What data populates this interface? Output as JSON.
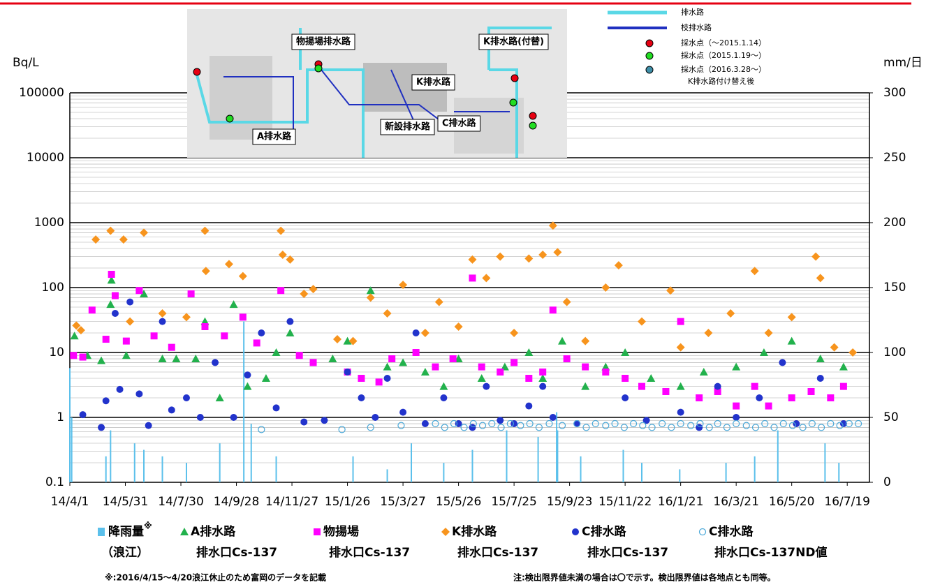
{
  "chart_data": {
    "type": "scatter",
    "y_label": "Bq/L",
    "y2_label": "mm/日",
    "log_y": true,
    "grid": true,
    "minor_grid": true,
    "xlim": [
      "14/4/1",
      "16/8/12"
    ],
    "xticks": [
      "14/4/1",
      "14/5/31",
      "14/7/30",
      "14/9/28",
      "14/11/27",
      "15/1/26",
      "15/3/27",
      "15/5/26",
      "15/7/25",
      "15/9/23",
      "15/11/22",
      "16/1/21",
      "16/3/21",
      "16/5/20",
      "16/7/19"
    ],
    "ylim": [
      0.1,
      100000
    ],
    "yticks": [
      0.1,
      1,
      10,
      100,
      1000,
      10000,
      100000
    ],
    "y2lim": [
      0,
      300
    ],
    "y2ticks": [
      0,
      50,
      100,
      150,
      200,
      250,
      300
    ],
    "series": [
      {
        "name": [
          "降雨量",
          "（浪江）"
        ],
        "name_mark": "※",
        "type": "bar",
        "axis": "y2",
        "color": "#5bc0eb",
        "x": [
          "14/4/1",
          "14/4/3",
          "14/5/10",
          "14/5/15",
          "14/6/10",
          "14/6/20",
          "14/7/10",
          "14/8/5",
          "14/9/10",
          "14/10/6",
          "14/10/14",
          "14/11/10",
          "15/2/1",
          "15/3/10",
          "15/4/5",
          "15/5/10",
          "15/6/10",
          "15/7/17",
          "15/8/20",
          "15/9/9",
          "15/9/10",
          "15/10/5",
          "15/11/20",
          "15/12/10",
          "16/1/20",
          "16/3/10",
          "16/4/10",
          "16/5/5",
          "16/6/25",
          "16/7/10"
        ],
        "values": [
          88,
          50,
          20,
          40,
          30,
          25,
          20,
          15,
          30,
          124,
          45,
          20,
          20,
          10,
          30,
          15,
          25,
          40,
          35,
          54,
          40,
          20,
          25,
          15,
          10,
          15,
          20,
          40,
          30,
          15
        ]
      },
      {
        "name": [
          "A排水路",
          "排水口Cs-137"
        ],
        "marker": "triangle",
        "color": "#22b14c",
        "x": [
          "14/4/6",
          "14/4/20",
          "14/5/5",
          "14/5/15",
          "14/5/16",
          "14/6/1",
          "14/6/20",
          "14/7/10",
          "14/7/25",
          "14/8/15",
          "14/8/25",
          "14/9/10",
          "14/9/25",
          "14/10/10",
          "14/10/30",
          "14/11/10",
          "14/11/25",
          "15/1/10",
          "15/1/26",
          "15/2/20",
          "15/3/10",
          "15/3/27",
          "15/4/20",
          "15/5/10",
          "15/5/26",
          "15/6/20",
          "15/7/15",
          "15/8/10",
          "15/8/25",
          "15/9/15",
          "15/10/10",
          "15/11/1",
          "15/11/22",
          "15/12/20",
          "16/1/21",
          "16/2/15",
          "16/3/21",
          "16/4/20",
          "16/5/20",
          "16/6/20",
          "16/7/15"
        ],
        "values": [
          18,
          9,
          7.5,
          55,
          130,
          9,
          80,
          8,
          8,
          8,
          30,
          2,
          55,
          3,
          4,
          10,
          20,
          8,
          15,
          90,
          6,
          7,
          5,
          3,
          8,
          4,
          6,
          10,
          4,
          15,
          3,
          6,
          10,
          4,
          3,
          5,
          6,
          10,
          15,
          8,
          6
        ]
      },
      {
        "name": [
          "物揚場",
          "排水口Cs-137"
        ],
        "marker": "square",
        "color": "#ff00ff",
        "x": [
          "14/4/5",
          "14/4/15",
          "14/4/25",
          "14/5/10",
          "14/5/16",
          "14/5/20",
          "14/6/1",
          "14/6/15",
          "14/7/1",
          "14/7/20",
          "14/8/10",
          "14/8/25",
          "14/9/15",
          "14/10/5",
          "14/10/20",
          "14/11/15",
          "14/12/5",
          "14/12/20",
          "15/1/26",
          "15/2/10",
          "15/3/1",
          "15/3/15",
          "15/4/10",
          "15/5/1",
          "15/5/20",
          "15/6/10",
          "15/6/20",
          "15/7/10",
          "15/7/25",
          "15/8/10",
          "15/8/25",
          "15/9/5",
          "15/9/20",
          "15/10/10",
          "15/11/1",
          "15/11/22",
          "15/12/10",
          "16/1/5",
          "16/1/21",
          "16/2/10",
          "16/3/1",
          "16/3/21",
          "16/4/10",
          "16/4/25",
          "16/5/20",
          "16/6/10",
          "16/7/1",
          "16/7/15"
        ],
        "values": [
          9,
          8.5,
          45,
          16,
          160,
          75,
          15,
          90,
          18,
          12,
          80,
          25,
          18,
          35,
          14,
          90,
          9,
          7,
          5,
          4,
          3.5,
          8,
          10,
          6,
          8,
          140,
          6,
          5,
          7,
          4,
          5,
          45,
          8,
          6,
          5,
          4,
          3,
          2.5,
          30,
          2,
          2.5,
          1.5,
          3,
          1.5,
          2,
          2.5,
          2,
          3
        ]
      },
      {
        "name": [
          "K排水路",
          "排水口Cs-137"
        ],
        "marker": "diamond",
        "color": "#f7941d",
        "x": [
          "14/4/8",
          "14/4/13",
          "14/4/29",
          "14/5/15",
          "14/5/29",
          "14/6/5",
          "14/6/20",
          "14/7/10",
          "14/8/5",
          "14/8/25",
          "14/8/26",
          "14/9/20",
          "14/10/5",
          "14/11/15",
          "14/11/17",
          "14/11/25",
          "14/12/10",
          "14/12/20",
          "15/1/15",
          "15/2/1",
          "15/2/20",
          "15/3/10",
          "15/3/27",
          "15/4/20",
          "15/5/5",
          "15/5/26",
          "15/6/10",
          "15/6/25",
          "15/7/10",
          "15/7/25",
          "15/8/10",
          "15/8/25",
          "15/9/5",
          "15/9/10",
          "15/9/20",
          "15/10/10",
          "15/11/1",
          "15/11/15",
          "15/12/10",
          "16/1/10",
          "16/1/21",
          "16/2/20",
          "16/3/15",
          "16/4/10",
          "16/4/25",
          "16/5/20",
          "16/6/15",
          "16/6/20",
          "16/7/5",
          "16/7/25"
        ],
        "values": [
          26,
          22,
          550,
          750,
          550,
          30,
          700,
          40,
          35,
          750,
          180,
          230,
          150,
          750,
          320,
          270,
          80,
          95,
          16,
          15,
          70,
          40,
          110,
          20,
          60,
          25,
          270,
          140,
          300,
          20,
          280,
          320,
          900,
          350,
          60,
          15,
          100,
          220,
          30,
          90,
          12,
          20,
          40,
          180,
          20,
          35,
          300,
          140,
          12,
          10
        ]
      },
      {
        "name": [
          "C排水路",
          "排水口Cs-137"
        ],
        "marker": "circle",
        "color": "#2233cc",
        "x": [
          "14/4/15",
          "14/5/5",
          "14/5/10",
          "14/5/20",
          "14/5/25",
          "14/6/5",
          "14/6/15",
          "14/6/25",
          "14/7/10",
          "14/7/20",
          "14/8/5",
          "14/8/20",
          "14/9/5",
          "14/9/25",
          "14/10/10",
          "14/10/25",
          "14/11/10",
          "14/11/25",
          "14/12/10",
          "15/1/1",
          "15/1/26",
          "15/2/10",
          "15/2/25",
          "15/3/10",
          "15/3/27",
          "15/4/10",
          "15/4/20",
          "15/5/10",
          "15/5/26",
          "15/6/10",
          "15/6/25",
          "15/7/10",
          "15/7/25",
          "15/8/10",
          "15/8/25",
          "15/9/5",
          "15/10/1",
          "15/11/22",
          "15/12/15",
          "16/1/21",
          "16/2/10",
          "16/3/1",
          "16/3/21",
          "16/4/15",
          "16/5/10",
          "16/5/25",
          "16/6/20",
          "16/7/15"
        ],
        "values": [
          1.1,
          0.7,
          1.8,
          40,
          2.7,
          60,
          2.3,
          0.75,
          30,
          1.3,
          2,
          1,
          7,
          1,
          4.5,
          20,
          1.4,
          30,
          0.85,
          0.9,
          5,
          2,
          1,
          4,
          1.2,
          20,
          0.8,
          2,
          0.8,
          0.7,
          3,
          0.9,
          0.8,
          1.5,
          3,
          1,
          0.8,
          2,
          0.9,
          1.2,
          0.7,
          3,
          1,
          2,
          7,
          0.8,
          4,
          0.8
        ]
      },
      {
        "name": [
          "C排水路",
          "排水口Cs-137ND値"
        ],
        "marker": "open-circle",
        "color": "#4aa8d8",
        "x": [
          "14/10/25",
          "15/1/20",
          "15/2/20",
          "15/3/25",
          "15/5/1",
          "15/5/11",
          "15/5/21",
          "15/6/1",
          "15/6/11",
          "15/6/21",
          "15/7/1",
          "15/7/11",
          "15/7/21",
          "15/8/1",
          "15/8/11",
          "15/8/21",
          "15/9/1",
          "15/9/15",
          "15/10/1",
          "15/10/11",
          "15/10/21",
          "15/11/1",
          "15/11/11",
          "15/11/21",
          "15/12/1",
          "15/12/11",
          "15/12/21",
          "16/1/1",
          "16/1/11",
          "16/1/21",
          "16/2/1",
          "16/2/11",
          "16/2/21",
          "16/3/1",
          "16/3/11",
          "16/3/21",
          "16/4/1",
          "16/4/11",
          "16/4/21",
          "16/5/1",
          "16/5/11",
          "16/5/21",
          "16/6/1",
          "16/6/11",
          "16/6/21",
          "16/7/1",
          "16/7/11",
          "16/7/21",
          "16/7/31"
        ],
        "values": [
          0.65,
          0.65,
          0.7,
          0.75,
          0.8,
          0.7,
          0.8,
          0.7,
          0.8,
          0.75,
          0.8,
          0.7,
          0.8,
          0.75,
          0.8,
          0.7,
          0.8,
          0.75,
          0.8,
          0.7,
          0.8,
          0.75,
          0.8,
          0.7,
          0.8,
          0.75,
          0.7,
          0.8,
          0.7,
          0.8,
          0.75,
          0.8,
          0.7,
          0.8,
          0.7,
          0.8,
          0.75,
          0.7,
          0.8,
          0.7,
          0.8,
          0.75,
          0.7,
          0.8,
          0.7,
          0.8,
          0.75,
          0.8,
          0.8
        ]
      }
    ],
    "notes": [
      "※:2016/4/15～4/20浪江休止のため富岡のデータを記載",
      "注:検出限界値未満の場合は〇で示す。検出限界値は各地点とも同等。"
    ]
  },
  "map": {
    "labels": [
      "物揚場排水路",
      "K排水路(付替)",
      "K排水路",
      "A排水路",
      "新設排水路",
      "C排水路"
    ],
    "legend": [
      "排水路",
      "枝排水路",
      "採水点（～2015.1.14）",
      "採水点（2015.1.19～）",
      "採水点（2016.3.28～）",
      "K排水路付け替え後"
    ]
  }
}
